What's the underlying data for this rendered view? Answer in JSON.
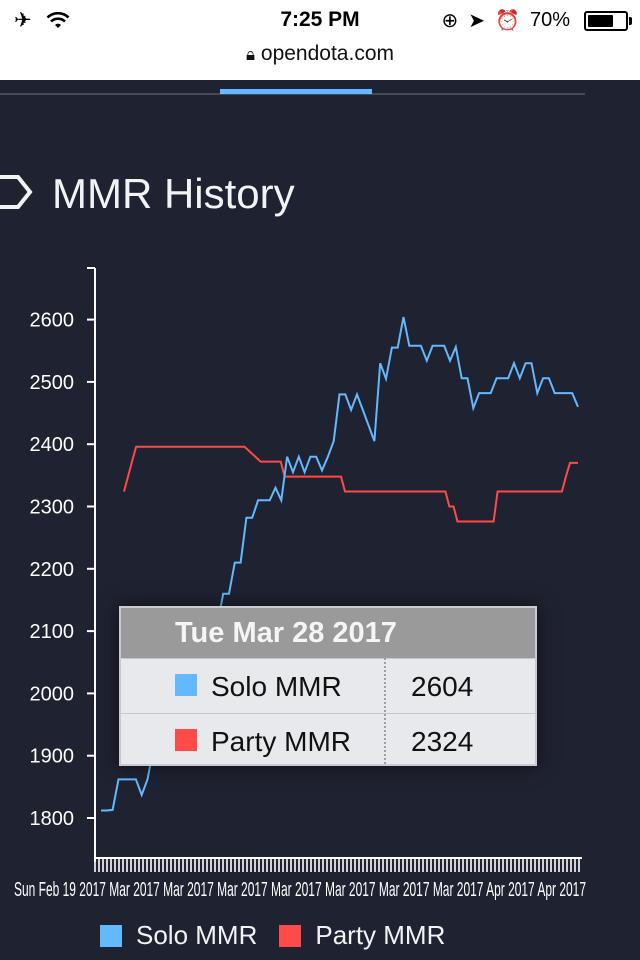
{
  "status_bar": {
    "time": "7:25 PM",
    "battery": "70%",
    "battery_level": 0.7
  },
  "url_bar": {
    "domain": "opendota.com"
  },
  "section": {
    "title": "MMR History"
  },
  "colors": {
    "solo": "#63b9ff",
    "party": "#ff4a4a",
    "background": "#1f2230"
  },
  "chart_data": {
    "type": "line",
    "ylim": [
      1750,
      2680
    ],
    "y_ticks": [
      1800,
      1900,
      2000,
      2100,
      2200,
      2300,
      2400,
      2500,
      2600
    ],
    "x_tick_label_text": "Sun Feb 19 2017 Mar 2017 Mar 2017 Mar 2017 Mar 2017 Mar 2017 Mar 2017 Mar 2017 Apr 2017 Apr 2017",
    "series": [
      {
        "name": "Solo MMR",
        "color": "#63b9ff",
        "values": [
          1812,
          1812,
          1813,
          1862,
          1862,
          1862,
          1862,
          1837,
          1862,
          1912,
          1962,
          1962,
          2010,
          2010,
          1962,
          2012,
          2060,
          2060,
          2110,
          2130,
          2110,
          2160,
          2160,
          2210,
          2210,
          2282,
          2282,
          2310,
          2310,
          2310,
          2330,
          2310,
          2380,
          2355,
          2380,
          2355,
          2380,
          2380,
          2358,
          2380,
          2405,
          2480,
          2480,
          2455,
          2480,
          2455,
          2430,
          2405,
          2530,
          2505,
          2555,
          2555,
          2604,
          2558,
          2558,
          2558,
          2534,
          2558,
          2558,
          2558,
          2534,
          2556,
          2506,
          2506,
          2458,
          2482,
          2482,
          2482,
          2506,
          2506,
          2506,
          2530,
          2506,
          2530,
          2530,
          2482,
          2506,
          2506,
          2482,
          2482,
          2482,
          2482,
          2460
        ]
      },
      {
        "name": "Party MMR",
        "color": "#ff4a4a",
        "values": [
          2324,
          2348,
          2372,
          2396,
          2396,
          2396,
          2396,
          2396,
          2396,
          2396,
          2396,
          2396,
          2396,
          2396,
          2396,
          2396,
          2396,
          2396,
          2396,
          2396,
          2396,
          2396,
          2396,
          2396,
          2396,
          2396,
          2396,
          2396,
          2396,
          2396,
          2396,
          2390,
          2384,
          2378,
          2372,
          2372,
          2372,
          2372,
          2372,
          2372,
          2348,
          2348,
          2348,
          2348,
          2348,
          2348,
          2348,
          2348,
          2348,
          2348,
          2348,
          2348,
          2348,
          2348,
          2348,
          2324,
          2324,
          2324,
          2324,
          2324,
          2324,
          2324,
          2324,
          2324,
          2324,
          2324,
          2324,
          2324,
          2324,
          2324,
          2324,
          2324,
          2324,
          2324,
          2324,
          2324,
          2324,
          2324,
          2324,
          2324,
          2324,
          2300,
          2300,
          2276,
          2276,
          2276,
          2276,
          2276,
          2276,
          2276,
          2276,
          2276,
          2276,
          2324,
          2324,
          2324,
          2324,
          2324,
          2324,
          2324,
          2324,
          2324,
          2324,
          2324,
          2324,
          2324,
          2324,
          2324,
          2324,
          2324,
          2348,
          2370,
          2370,
          2370
        ]
      }
    ],
    "legend_position": "bottom",
    "tooltip": {
      "title": "Tue Mar 28 2017",
      "rows": [
        {
          "label": "Solo MMR",
          "value": "2604",
          "color": "#63b9ff"
        },
        {
          "label": "Party MMR",
          "value": "2324",
          "color": "#ff4a4a"
        }
      ]
    }
  },
  "legend": [
    {
      "label": "Solo MMR",
      "color": "#63b9ff"
    },
    {
      "label": "Party MMR",
      "color": "#ff4a4a"
    }
  ]
}
